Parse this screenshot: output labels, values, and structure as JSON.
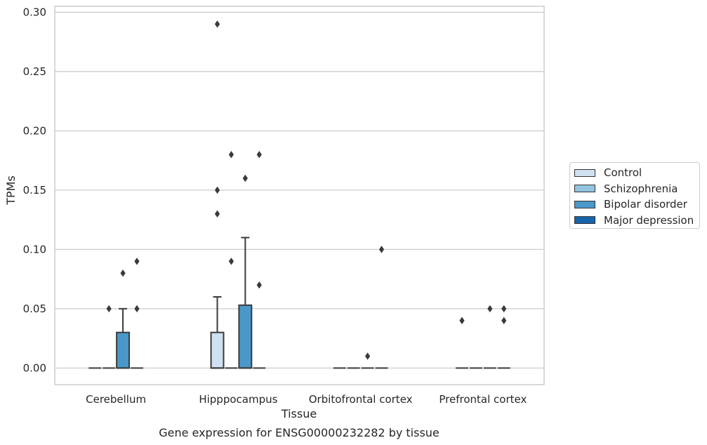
{
  "chart_data": {
    "type": "box",
    "title": "Gene expression for ENSG00000232282 by tissue",
    "xlabel": "Tissue",
    "ylabel": "TPMs",
    "ylim": [
      -0.014,
      0.305
    ],
    "yticks": [
      "0.00",
      "0.05",
      "0.10",
      "0.15",
      "0.20",
      "0.25",
      "0.30"
    ],
    "grid": true,
    "legend_position": "right",
    "categories": [
      "Cerebellum",
      "Hipppocampus",
      "Orbitofrontal cortex",
      "Prefrontal cortex"
    ],
    "series": [
      {
        "name": "Control",
        "color": "#d0e1f2",
        "boxes": [
          {
            "q1": 0,
            "median": 0,
            "q3": 0,
            "whisker_low": 0,
            "whisker_high": 0,
            "outliers": []
          },
          {
            "q1": 0,
            "median": 0,
            "q3": 0.03,
            "whisker_low": 0,
            "whisker_high": 0.06,
            "outliers": [
              0.13,
              0.15,
              0.29
            ]
          },
          {
            "q1": 0,
            "median": 0,
            "q3": 0,
            "whisker_low": 0,
            "whisker_high": 0,
            "outliers": []
          },
          {
            "q1": 0,
            "median": 0,
            "q3": 0,
            "whisker_low": 0,
            "whisker_high": 0,
            "outliers": [
              0.04
            ]
          }
        ]
      },
      {
        "name": "Schizophrenia",
        "color": "#94c4df",
        "boxes": [
          {
            "q1": 0,
            "median": 0,
            "q3": 0,
            "whisker_low": 0,
            "whisker_high": 0,
            "outliers": [
              0.05
            ]
          },
          {
            "q1": 0,
            "median": 0,
            "q3": 0,
            "whisker_low": 0,
            "whisker_high": 0,
            "outliers": [
              0.09,
              0.18
            ]
          },
          {
            "q1": 0,
            "median": 0,
            "q3": 0,
            "whisker_low": 0,
            "whisker_high": 0,
            "outliers": []
          },
          {
            "q1": 0,
            "median": 0,
            "q3": 0,
            "whisker_low": 0,
            "whisker_high": 0,
            "outliers": []
          }
        ]
      },
      {
        "name": "Bipolar disorder",
        "color": "#4a98c9",
        "boxes": [
          {
            "q1": 0,
            "median": 0,
            "q3": 0.03,
            "whisker_low": 0,
            "whisker_high": 0.05,
            "outliers": [
              0.08
            ]
          },
          {
            "q1": 0,
            "median": 0,
            "q3": 0.053,
            "whisker_low": 0,
            "whisker_high": 0.11,
            "outliers": [
              0.16
            ]
          },
          {
            "q1": 0,
            "median": 0,
            "q3": 0,
            "whisker_low": 0,
            "whisker_high": 0,
            "outliers": [
              0.01
            ]
          },
          {
            "q1": 0,
            "median": 0,
            "q3": 0,
            "whisker_low": 0,
            "whisker_high": 0,
            "outliers": [
              0.05
            ]
          }
        ]
      },
      {
        "name": "Major depression",
        "color": "#1764ab",
        "boxes": [
          {
            "q1": 0,
            "median": 0,
            "q3": 0,
            "whisker_low": 0,
            "whisker_high": 0,
            "outliers": [
              0.05,
              0.09
            ]
          },
          {
            "q1": 0,
            "median": 0,
            "q3": 0,
            "whisker_low": 0,
            "whisker_high": 0,
            "outliers": [
              0.07,
              0.18
            ]
          },
          {
            "q1": 0,
            "median": 0,
            "q3": 0,
            "whisker_low": 0,
            "whisker_high": 0,
            "outliers": [
              0.1
            ]
          },
          {
            "q1": 0,
            "median": 0,
            "q3": 0,
            "whisker_low": 0,
            "whisker_high": 0,
            "outliers": [
              0.04,
              0.05
            ]
          }
        ]
      }
    ]
  }
}
